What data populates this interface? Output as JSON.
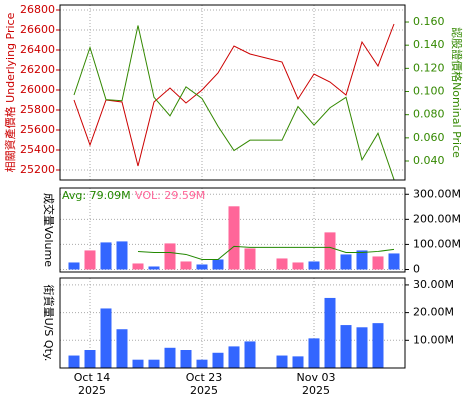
{
  "chart_data": [
    {
      "type": "line",
      "ylabel": "相關資產價格 Underlying Price",
      "y2label": "認股證價格Nominal Price",
      "series": [
        {
          "name": "Underlying Price",
          "color": "#cc0000",
          "values": [
            25900,
            25450,
            25900,
            25880,
            25240,
            25880,
            26020,
            25870,
            26000,
            26170,
            26440,
            26360,
            26320,
            26280,
            25910,
            26160,
            26080,
            25950,
            26480,
            26240,
            26660
          ]
        },
        {
          "name": "Nominal Price",
          "color": "#338800",
          "axis": "y2",
          "values": [
            0.097,
            0.138,
            0.093,
            0.092,
            0.157,
            0.095,
            0.079,
            0.104,
            0.094,
            0.07,
            0.049,
            0.058,
            0.058,
            0.058,
            0.087,
            0.071,
            0.086,
            0.095,
            0.041,
            0.064,
            0.024
          ]
        }
      ],
      "ylim": [
        25100,
        26850
      ],
      "yticks": [
        25200,
        25400,
        25600,
        25800,
        26000,
        26200,
        26400,
        26600,
        26800
      ],
      "y2lim": [
        0.0236,
        0.1747
      ],
      "y2ticks": [
        {
          "value": 0.04,
          "label": "0.040"
        },
        {
          "value": 0.06,
          "label": "0.060"
        },
        {
          "value": 0.08,
          "label": "0.080"
        },
        {
          "value": 0.1,
          "label": "0.100"
        },
        {
          "value": 0.12,
          "label": "0.120"
        },
        {
          "value": 0.14,
          "label": "0.140"
        },
        {
          "value": 0.16,
          "label": "0.160"
        }
      ],
      "grid": true
    },
    {
      "type": "bar",
      "ylabel": "成交量Volume",
      "annotations": [
        {
          "text": "Avg: 79.09M",
          "color": "#228800"
        },
        {
          "text": "VOL: 29.59M",
          "color": "#ff6699"
        }
      ],
      "values": [
        28,
        76,
        108,
        112,
        24,
        12,
        104,
        32,
        20,
        40,
        252,
        84,
        null,
        44,
        28,
        32,
        148,
        60,
        76,
        52,
        64
      ],
      "colors": [
        "#3366ff",
        "#ff6699",
        "#3366ff",
        "#3366ff",
        "#ff6699",
        "#3366ff",
        "#ff6699",
        "#ff6699",
        "#3366ff",
        "#3366ff",
        "#ff6699",
        "#ff6699",
        "#3366ff",
        "#ff6699",
        "#ff6699",
        "#3366ff",
        "#ff6699",
        "#3366ff",
        "#3366ff",
        "#ff6699",
        "#3366ff"
      ],
      "line": {
        "color": "#228800",
        "values": [
          null,
          null,
          null,
          null,
          72,
          68,
          68,
          60,
          40,
          40,
          92,
          88,
          88,
          88,
          88,
          88,
          88,
          68,
          68,
          72,
          80
        ]
      },
      "ylim": [
        -10,
        325
      ],
      "yticks": [
        0,
        {
          "value": 100,
          "label": "100.00M"
        },
        {
          "value": 200,
          "label": "200.00M"
        },
        {
          "value": 300,
          "label": "300.00M"
        }
      ],
      "grid": true
    },
    {
      "type": "bar",
      "ylabel": "街貨量U/S Qty.",
      "categories": [
        null,
        "Oct 14\n2025",
        null,
        null,
        null,
        null,
        null,
        null,
        "Oct 23\n2025",
        null,
        null,
        null,
        null,
        null,
        null,
        "Nov 03\n2025",
        null,
        null,
        null,
        null,
        null
      ],
      "values": [
        4.5,
        6.5,
        21.5,
        14,
        3,
        3,
        7.3,
        6.5,
        3,
        5.5,
        7.8,
        9.6,
        null,
        4.5,
        4.2,
        10.7,
        25.3,
        15.5,
        14.7,
        16.2,
        null
      ],
      "color": "#3366ff",
      "ylim": [
        0,
        32.5
      ],
      "yticks": [
        {
          "value": 10,
          "label": "10.00M"
        },
        {
          "value": 20,
          "label": "20.00M"
        },
        {
          "value": 30,
          "label": "30.00M"
        }
      ],
      "grid": true
    }
  ]
}
